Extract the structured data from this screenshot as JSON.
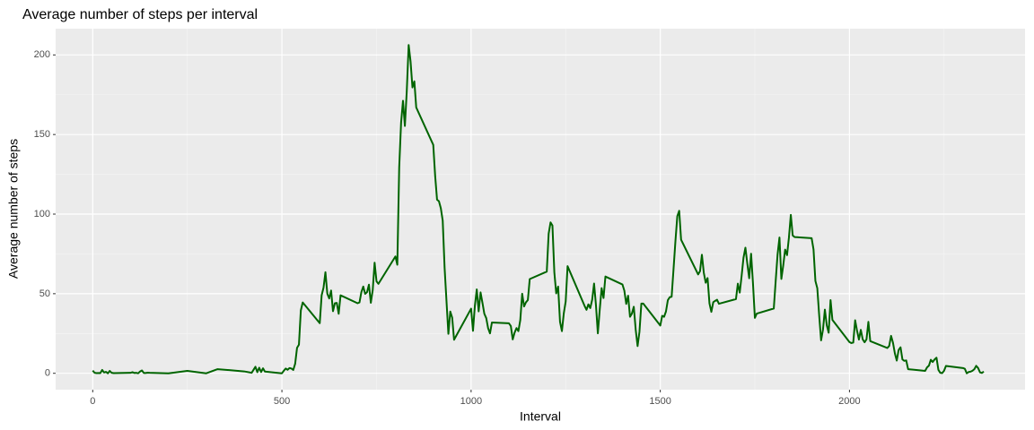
{
  "chart_data": {
    "type": "line",
    "title": "Average number of steps per interval",
    "xlabel": "Interval",
    "ylabel": "Average number of steps",
    "color": "#006400",
    "grid": true,
    "xlim": [
      -98,
      2464
    ],
    "ylim": [
      -10.3,
      216.5
    ],
    "xticks": [
      0,
      500,
      1000,
      1500,
      2000
    ],
    "yticks": [
      0,
      50,
      100,
      150,
      200
    ],
    "xticks_minor": [
      250,
      750,
      1250,
      1750,
      2250
    ],
    "yticks_minor": [
      25,
      75,
      125,
      175
    ],
    "x": [
      0,
      5,
      10,
      15,
      20,
      25,
      30,
      35,
      40,
      45,
      50,
      55,
      100,
      105,
      110,
      115,
      120,
      125,
      130,
      135,
      140,
      145,
      150,
      200,
      250,
      300,
      330,
      400,
      420,
      430,
      435,
      440,
      445,
      450,
      455,
      500,
      505,
      510,
      515,
      520,
      525,
      530,
      535,
      540,
      545,
      550,
      555,
      600,
      605,
      610,
      615,
      620,
      625,
      630,
      635,
      640,
      645,
      650,
      655,
      700,
      705,
      710,
      715,
      720,
      725,
      730,
      735,
      740,
      745,
      750,
      755,
      800,
      805,
      810,
      815,
      820,
      825,
      830,
      835,
      840,
      845,
      850,
      855,
      900,
      905,
      910,
      915,
      920,
      925,
      930,
      935,
      940,
      945,
      950,
      955,
      1000,
      1005,
      1010,
      1015,
      1020,
      1025,
      1030,
      1035,
      1040,
      1045,
      1050,
      1055,
      1100,
      1105,
      1110,
      1115,
      1120,
      1125,
      1130,
      1135,
      1140,
      1145,
      1150,
      1155,
      1200,
      1205,
      1210,
      1215,
      1220,
      1225,
      1230,
      1235,
      1240,
      1245,
      1250,
      1255,
      1300,
      1305,
      1310,
      1315,
      1320,
      1325,
      1330,
      1335,
      1340,
      1345,
      1350,
      1355,
      1400,
      1405,
      1410,
      1415,
      1420,
      1425,
      1430,
      1435,
      1440,
      1445,
      1450,
      1455,
      1500,
      1505,
      1510,
      1515,
      1520,
      1525,
      1530,
      1535,
      1540,
      1545,
      1550,
      1555,
      1600,
      1605,
      1610,
      1615,
      1620,
      1625,
      1630,
      1635,
      1640,
      1645,
      1650,
      1655,
      1700,
      1705,
      1710,
      1715,
      1720,
      1725,
      1730,
      1735,
      1740,
      1745,
      1750,
      1755,
      1800,
      1805,
      1810,
      1815,
      1820,
      1825,
      1830,
      1835,
      1840,
      1845,
      1850,
      1855,
      1900,
      1905,
      1910,
      1915,
      1920,
      1925,
      1930,
      1935,
      1940,
      1945,
      1950,
      1955,
      2000,
      2005,
      2010,
      2015,
      2020,
      2025,
      2030,
      2035,
      2040,
      2045,
      2050,
      2055,
      2100,
      2105,
      2110,
      2115,
      2120,
      2125,
      2130,
      2135,
      2140,
      2145,
      2150,
      2155,
      2200,
      2205,
      2210,
      2215,
      2220,
      2225,
      2230,
      2235,
      2240,
      2245,
      2250,
      2255,
      2300,
      2305,
      2310,
      2315,
      2320,
      2325,
      2330,
      2335,
      2340,
      2345,
      2350,
      2355
    ],
    "values": [
      1.7,
      0.3,
      0.1,
      0.2,
      0.1,
      2.1,
      0.5,
      0.9,
      0,
      1.5,
      0.3,
      0.1,
      0.3,
      0.7,
      0.2,
      0.3,
      0,
      1.1,
      1.8,
      0.2,
      0.2,
      0.4,
      0.3,
      0,
      1.5,
      0,
      2.6,
      1.2,
      0.3,
      4.1,
      0.7,
      3.5,
      0.8,
      3.1,
      1.1,
      0,
      1.6,
      3,
      2.2,
      3.3,
      3,
      2.1,
      6,
      16,
      18,
      39.5,
      44.5,
      31.5,
      49,
      53.8,
      63.5,
      50,
      47,
      52,
      39,
      44,
      44.2,
      37.4,
      49,
      44,
      44.5,
      51,
      54.5,
      49.9,
      51,
      55.7,
      44.3,
      52.3,
      69.5,
      57.8,
      56.2,
      73.4,
      68.2,
      129.4,
      157.5,
      171.2,
      155.4,
      177.3,
      206.2,
      195.9,
      179.6,
      183.4,
      167,
      143.5,
      124,
      109.1,
      108.1,
      103.7,
      95.9,
      66.2,
      45.2,
      24.8,
      38.8,
      35,
      21.1,
      40.6,
      26.7,
      42.4,
      52.7,
      38.9,
      50.8,
      44.3,
      37.4,
      34.7,
      28.3,
      25.1,
      31.9,
      31.4,
      29.7,
      21.3,
      25.5,
      28.4,
      26.5,
      33.4,
      49.98,
      42,
      44.6,
      46,
      59.2,
      63.9,
      87.7,
      94.8,
      92.8,
      63.4,
      50.2,
      54.5,
      32.4,
      26.5,
      37.7,
      45.1,
      67.3,
      42.3,
      39.9,
      43.3,
      40.98,
      46.2,
      56.4,
      42.8,
      25.1,
      39.97,
      53.5,
      47.3,
      60.8,
      55.8,
      51.96,
      43.6,
      48.7,
      35.5,
      37.5,
      41.8,
      27.5,
      17.1,
      26.1,
      43.8,
      43.8,
      30,
      36.1,
      35.5,
      38.8,
      45.96,
      47.8,
      48.1,
      65.3,
      82.9,
      98.7,
      102.1,
      83.96,
      62.1,
      64.1,
      74.5,
      63.2,
      56.9,
      59.8,
      43.9,
      38.6,
      44.7,
      45.5,
      46.2,
      43.7,
      46.6,
      56.3,
      50.7,
      61.2,
      72.7,
      78.9,
      68.9,
      59.7,
      75.1,
      56.5,
      34.8,
      37.5,
      40.7,
      58,
      74.7,
      85.3,
      59.3,
      67.8,
      77.7,
      74.2,
      85.3,
      99.5,
      86.6,
      85.6,
      84.9,
      77.8,
      58,
      53.4,
      36.3,
      20.7,
      27.4,
      40,
      30.2,
      25.5,
      46,
      33.5,
      19.6,
      19,
      19.3,
      33.3,
      26.8,
      21.2,
      27.3,
      21.3,
      19.5,
      21.3,
      32.3,
      20.2,
      15.9,
      17.2,
      23.5,
      19.2,
      12.5,
      8,
      14.7,
      16.3,
      8.7,
      7.8,
      8.1,
      2.6,
      1.5,
      3.7,
      4.8,
      8.5,
      7.1,
      8.7,
      9.8,
      2.2,
      0.3,
      0.1,
      1.6,
      4.6,
      3.3,
      2.8,
      0,
      0.8,
      1,
      1.6,
      2.6,
      4.7,
      3.3,
      0.6,
      0.2,
      1.1
    ]
  }
}
